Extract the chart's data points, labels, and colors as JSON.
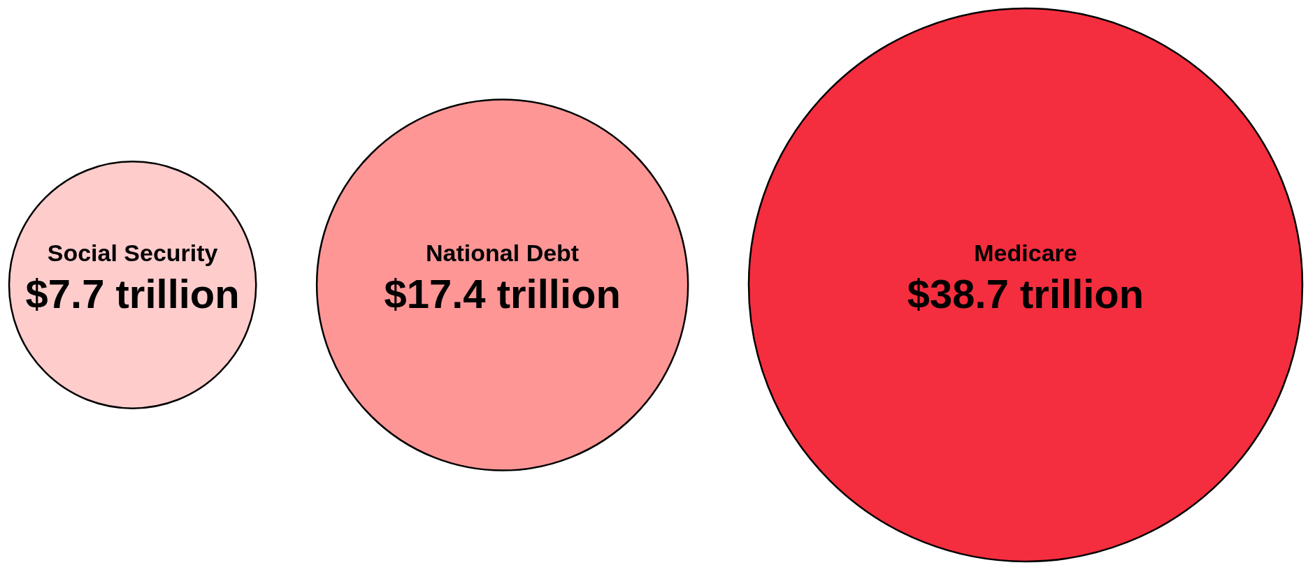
{
  "chart_data": {
    "type": "other",
    "categories": [
      "Social Security",
      "National Debt",
      "Medicare"
    ],
    "values": [
      7.7,
      17.4,
      38.7
    ],
    "value_labels": [
      "$7.7 trillion",
      "$17.4 trillion",
      "$38.7 trillion"
    ],
    "colors": [
      "#ffcccc",
      "#fe9696",
      "#f42e3e"
    ]
  }
}
